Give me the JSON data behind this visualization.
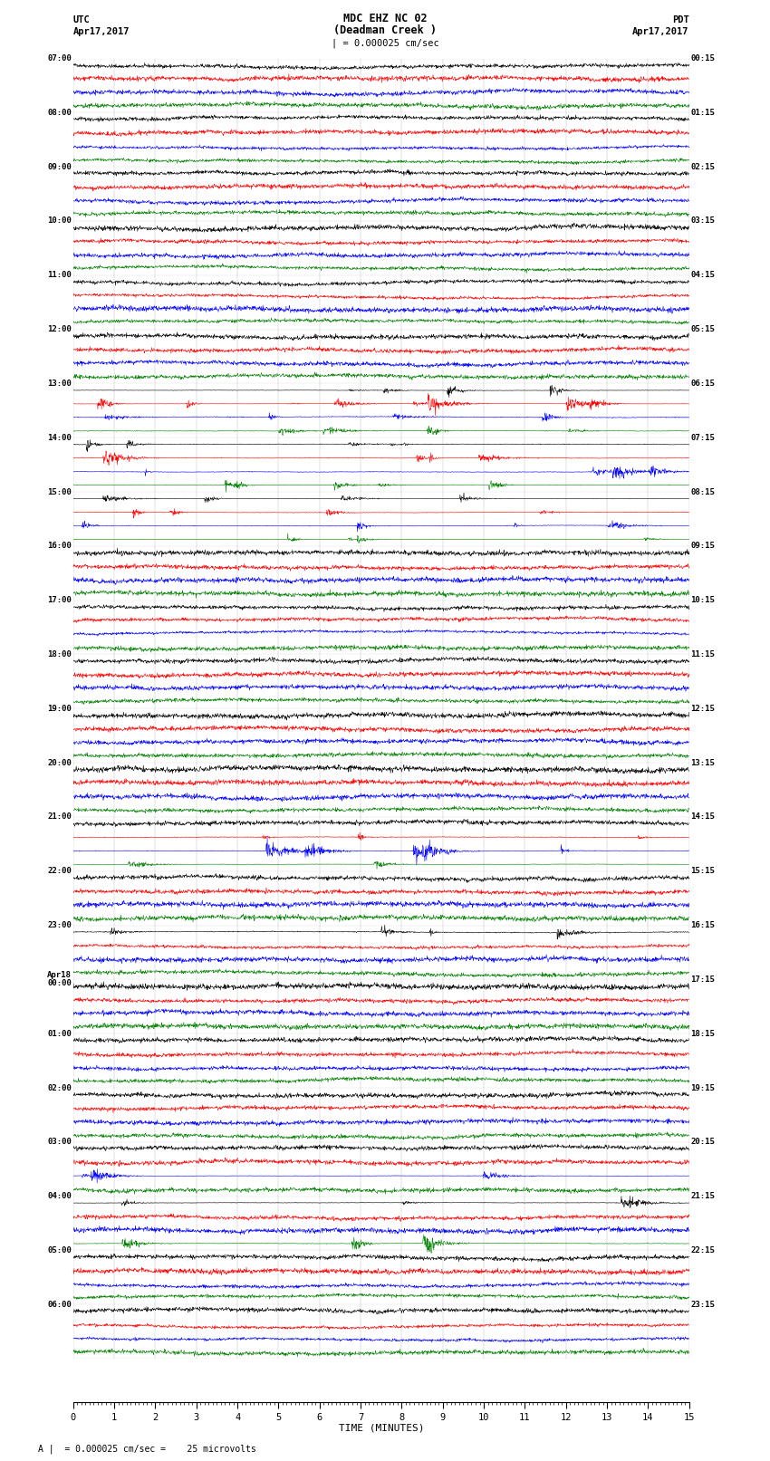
{
  "title_line1": "MDC EHZ NC 02",
  "title_line2": "(Deadman Creek )",
  "title_line3": "| = 0.000025 cm/sec",
  "utc_label": "UTC",
  "utc_date": "Apr17,2017",
  "pdt_label": "PDT",
  "pdt_date": "Apr17,2017",
  "xlabel": "TIME (MINUTES)",
  "footer": "A |  = 0.000025 cm/sec =    25 microvolts",
  "bg_color": "#ffffff",
  "trace_colors": [
    "black",
    "red",
    "blue",
    "green"
  ],
  "num_hours": 24,
  "traces_per_hour": 4,
  "minutes_per_row": 15,
  "xlim": [
    0,
    15
  ],
  "left_labels": [
    "07:00",
    "08:00",
    "09:00",
    "10:00",
    "11:00",
    "12:00",
    "13:00",
    "14:00",
    "15:00",
    "16:00",
    "17:00",
    "18:00",
    "19:00",
    "20:00",
    "21:00",
    "22:00",
    "23:00",
    "Apr18\n00:00",
    "01:00",
    "02:00",
    "03:00",
    "04:00",
    "05:00",
    "06:00"
  ],
  "right_labels": [
    "00:15",
    "01:15",
    "02:15",
    "03:15",
    "04:15",
    "05:15",
    "06:15",
    "07:15",
    "08:15",
    "09:15",
    "10:15",
    "11:15",
    "12:15",
    "13:15",
    "14:15",
    "15:15",
    "16:15",
    "17:15",
    "18:15",
    "19:15",
    "20:15",
    "21:15",
    "22:15",
    "23:15"
  ],
  "noise_base": 0.08,
  "seed": 42
}
